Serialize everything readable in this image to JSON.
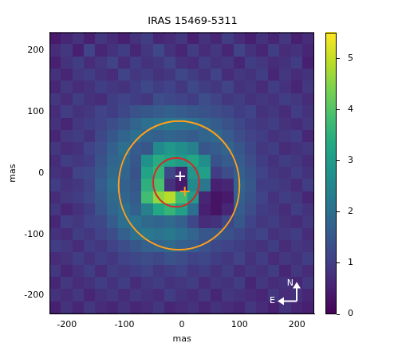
{
  "chart_data": {
    "type": "heatmap",
    "title": "IRAS 15469-5311",
    "x_label": "mas",
    "y_label": "mas",
    "xlim": [
      -230,
      230
    ],
    "ylim": [
      -230,
      230
    ],
    "xticks": [
      -200,
      -100,
      0,
      100,
      200
    ],
    "yticks": [
      -200,
      -100,
      0,
      100,
      200
    ],
    "grid": false,
    "color": "viridis",
    "x": [
      -220,
      -200,
      -180,
      -160,
      -140,
      -120,
      -100,
      -80,
      -60,
      -40,
      -20,
      0,
      20,
      40,
      60,
      80,
      100,
      120,
      140,
      160,
      180,
      200,
      220
    ],
    "y": [
      220,
      200,
      180,
      160,
      140,
      120,
      100,
      80,
      60,
      40,
      20,
      0,
      -20,
      -40,
      -60,
      -80,
      -100,
      -120,
      -140,
      -160,
      -180,
      -200,
      -220
    ],
    "cells": [
      [
        0.4,
        0.6,
        0.8,
        0.5,
        0.9,
        0.7,
        0.5,
        0.8,
        1.0,
        0.6,
        0.7,
        0.9,
        0.5,
        0.8,
        0.6,
        1.0,
        0.7,
        0.5,
        0.8,
        0.6,
        0.9,
        0.5,
        0.7
      ],
      [
        0.7,
        0.9,
        0.5,
        1.1,
        0.6,
        0.8,
        1.0,
        0.6,
        0.9,
        1.2,
        0.8,
        0.6,
        1.0,
        0.7,
        0.9,
        0.6,
        1.1,
        0.8,
        0.6,
        1.0,
        0.7,
        0.8,
        0.6
      ],
      [
        0.5,
        0.8,
        1.0,
        0.7,
        0.9,
        1.1,
        0.7,
        1.0,
        0.8,
        0.9,
        1.1,
        0.8,
        0.7,
        1.0,
        0.8,
        0.9,
        0.6,
        1.0,
        0.9,
        0.7,
        0.8,
        1.0,
        0.5
      ],
      [
        0.8,
        0.6,
        0.9,
        1.0,
        0.8,
        0.7,
        1.1,
        0.9,
        1.0,
        0.8,
        0.9,
        1.2,
        1.0,
        0.8,
        1.1,
        0.7,
        0.9,
        0.8,
        1.0,
        0.6,
        0.9,
        0.7,
        0.8
      ],
      [
        0.6,
        0.9,
        0.7,
        0.8,
        1.0,
        0.9,
        0.8,
        1.0,
        1.2,
        1.0,
        1.1,
        0.9,
        1.2,
        1.0,
        0.9,
        1.1,
        0.8,
        0.9,
        0.7,
        1.0,
        0.8,
        0.6,
        0.9
      ],
      [
        0.9,
        0.7,
        1.0,
        0.8,
        0.7,
        1.0,
        1.1,
        1.0,
        0.9,
        1.3,
        1.2,
        1.1,
        1.0,
        1.3,
        1.1,
        0.9,
        1.0,
        0.8,
        0.9,
        0.8,
        1.0,
        0.9,
        0.7
      ],
      [
        0.7,
        1.0,
        0.8,
        0.9,
        1.1,
        1.0,
        1.2,
        1.4,
        1.5,
        1.6,
        1.7,
        1.6,
        1.5,
        1.4,
        1.3,
        1.2,
        1.0,
        1.1,
        0.8,
        0.9,
        0.7,
        1.0,
        0.8
      ],
      [
        0.8,
        0.6,
        0.9,
        1.0,
        1.1,
        1.3,
        1.5,
        1.8,
        2.0,
        2.1,
        2.2,
        2.1,
        2.0,
        1.8,
        1.6,
        1.4,
        1.2,
        1.0,
        0.9,
        1.0,
        0.8,
        0.7,
        0.9
      ],
      [
        0.6,
        0.9,
        1.0,
        0.8,
        1.2,
        1.5,
        1.8,
        2.0,
        1.8,
        1.7,
        1.8,
        1.7,
        1.6,
        1.8,
        1.9,
        1.6,
        1.3,
        1.1,
        1.0,
        0.8,
        0.9,
        1.0,
        0.6
      ],
      [
        0.9,
        0.7,
        0.8,
        1.1,
        1.3,
        1.7,
        2.0,
        1.6,
        1.5,
        2.6,
        2.9,
        2.7,
        2.4,
        1.5,
        1.6,
        1.8,
        1.5,
        1.2,
        0.9,
        1.0,
        0.7,
        0.8,
        0.9
      ],
      [
        0.7,
        1.0,
        0.9,
        1.0,
        1.4,
        1.8,
        1.9,
        1.5,
        2.8,
        3.4,
        3.2,
        3.0,
        3.3,
        2.7,
        1.4,
        1.6,
        1.6,
        1.3,
        1.0,
        0.8,
        1.0,
        0.9,
        0.7
      ],
      [
        0.8,
        0.7,
        1.1,
        1.2,
        1.5,
        1.9,
        1.8,
        1.4,
        3.2,
        3.6,
        1.2,
        0.6,
        2.9,
        3.1,
        1.0,
        1.3,
        1.7,
        1.4,
        1.1,
        0.9,
        0.8,
        1.0,
        0.8
      ],
      [
        1.0,
        0.8,
        0.9,
        1.1,
        1.6,
        2.0,
        1.7,
        1.5,
        3.5,
        3.9,
        0.8,
        0.4,
        2.6,
        2.2,
        0.5,
        0.6,
        1.8,
        1.5,
        1.0,
        1.0,
        0.9,
        0.7,
        1.0
      ],
      [
        0.7,
        0.9,
        1.0,
        1.2,
        1.5,
        1.9,
        1.8,
        1.6,
        3.8,
        4.6,
        4.9,
        3.8,
        3.0,
        0.6,
        0.3,
        0.4,
        1.7,
        1.4,
        1.1,
        0.8,
        1.0,
        0.9,
        0.6
      ],
      [
        0.9,
        0.6,
        0.8,
        1.0,
        1.4,
        1.8,
        2.0,
        1.7,
        2.4,
        3.3,
        3.6,
        3.1,
        2.0,
        0.5,
        0.3,
        0.6,
        1.6,
        1.3,
        1.0,
        0.9,
        0.7,
        1.0,
        0.8
      ],
      [
        0.6,
        1.0,
        0.9,
        1.1,
        1.2,
        1.6,
        2.0,
        2.1,
        1.9,
        1.8,
        1.9,
        1.7,
        1.2,
        0.7,
        0.8,
        1.2,
        1.5,
        1.1,
        0.9,
        1.0,
        0.8,
        0.7,
        0.9
      ],
      [
        0.8,
        0.7,
        1.0,
        0.9,
        1.1,
        1.3,
        1.7,
        2.0,
        2.2,
        2.1,
        2.2,
        2.0,
        1.8,
        1.5,
        1.5,
        1.4,
        1.2,
        1.0,
        1.1,
        0.8,
        0.9,
        1.0,
        0.7
      ],
      [
        1.0,
        0.9,
        0.7,
        1.0,
        0.9,
        1.1,
        1.3,
        1.5,
        1.7,
        1.8,
        1.9,
        1.7,
        1.6,
        1.4,
        1.2,
        1.1,
        1.0,
        0.9,
        0.8,
        1.0,
        0.7,
        0.9,
        0.8
      ],
      [
        0.7,
        0.8,
        1.0,
        0.8,
        1.0,
        0.9,
        1.1,
        1.2,
        1.3,
        1.2,
        1.4,
        1.3,
        1.1,
        1.2,
        1.0,
        0.9,
        1.1,
        0.8,
        1.0,
        0.7,
        0.9,
        0.8,
        1.0
      ],
      [
        0.9,
        0.6,
        0.8,
        1.0,
        0.7,
        1.0,
        0.9,
        1.0,
        1.1,
        0.9,
        1.0,
        1.1,
        0.9,
        1.0,
        0.8,
        1.0,
        0.7,
        0.9,
        0.8,
        1.0,
        0.6,
        0.9,
        0.7
      ],
      [
        0.6,
        0.9,
        0.7,
        0.8,
        1.0,
        0.8,
        1.0,
        0.7,
        0.9,
        1.0,
        0.8,
        0.9,
        1.0,
        0.7,
        0.9,
        0.8,
        1.0,
        0.6,
        0.9,
        0.7,
        0.8,
        0.6,
        0.9
      ],
      [
        0.8,
        0.7,
        0.9,
        0.6,
        0.8,
        0.9,
        0.7,
        0.9,
        0.8,
        0.7,
        1.0,
        0.8,
        0.7,
        0.9,
        0.6,
        0.9,
        0.8,
        0.7,
        0.6,
        0.9,
        0.7,
        0.8,
        0.6
      ],
      [
        0.5,
        0.8,
        0.6,
        0.9,
        0.7,
        0.6,
        0.8,
        0.6,
        0.7,
        0.9,
        0.6,
        0.7,
        0.8,
        0.6,
        0.8,
        0.7,
        0.6,
        0.9,
        0.7,
        0.5,
        0.8,
        0.6,
        0.5
      ]
    ],
    "colorbar": {
      "range": [
        0,
        5.5
      ],
      "ticks": [
        0,
        1,
        2,
        3,
        4,
        5
      ]
    },
    "circles": [
      {
        "center": [
          -10,
          -15
        ],
        "radius": 40,
        "color": "#d62728"
      },
      {
        "center": [
          -5,
          -20
        ],
        "radius": 105,
        "color": "#ff9f1c"
      }
    ],
    "markers": [
      {
        "x": -3,
        "y": -5,
        "color": "#ffffff",
        "marker": "plus"
      },
      {
        "x": 5,
        "y": -30,
        "color": "#ff9f1c",
        "marker": "plus"
      }
    ],
    "compass": {
      "north": "N",
      "east": "E"
    }
  }
}
